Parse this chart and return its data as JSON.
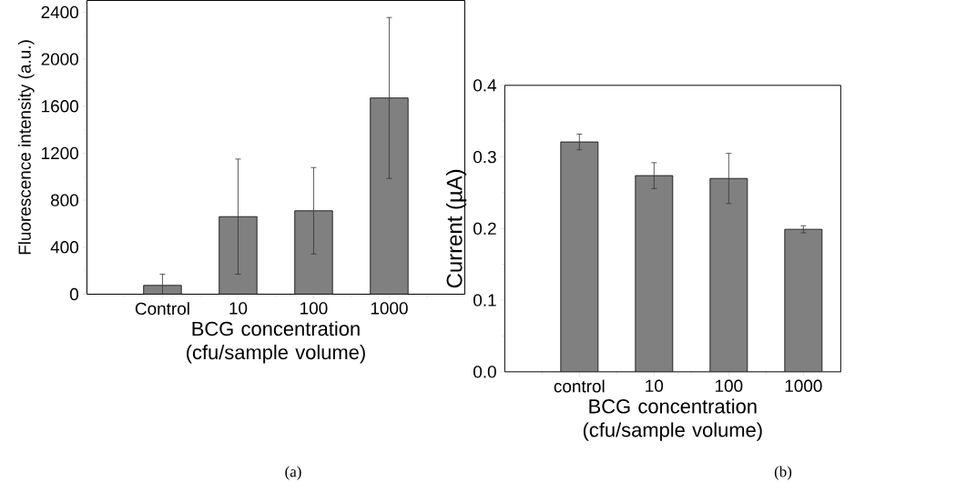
{
  "chart_data": [
    {
      "type": "bar",
      "categories": [
        "Control",
        "10",
        "100",
        "1000"
      ],
      "values": [
        75,
        660,
        710,
        1670
      ],
      "errors": [
        95,
        490,
        368,
        685
      ],
      "color": "#808080",
      "ylabel": "Fluorescence intensity (a.u.)",
      "xlabel": "BCG concentration (cfu/sample volume)",
      "ylim": [
        0,
        2500
      ],
      "yticks": [
        0,
        400,
        800,
        1200,
        1600,
        2000,
        2400
      ],
      "annotations": [
        "(a)"
      ]
    },
    {
      "type": "bar",
      "categories": [
        "control",
        "10",
        "100",
        "1000"
      ],
      "values": [
        0.321,
        0.274,
        0.27,
        0.199
      ],
      "errors": [
        0.011,
        0.018,
        0.035,
        0.005
      ],
      "color": "#808080",
      "ylabel": "Current (µA)",
      "xlabel": "BCG concentration (cfu/sample volume)",
      "ylim": [
        0,
        0.4
      ],
      "yticks": [
        {
          "value": 0,
          "label": "0.0"
        },
        0.1,
        0.2,
        0.3,
        0.4
      ],
      "annotations": [
        "(b)"
      ]
    }
  ]
}
